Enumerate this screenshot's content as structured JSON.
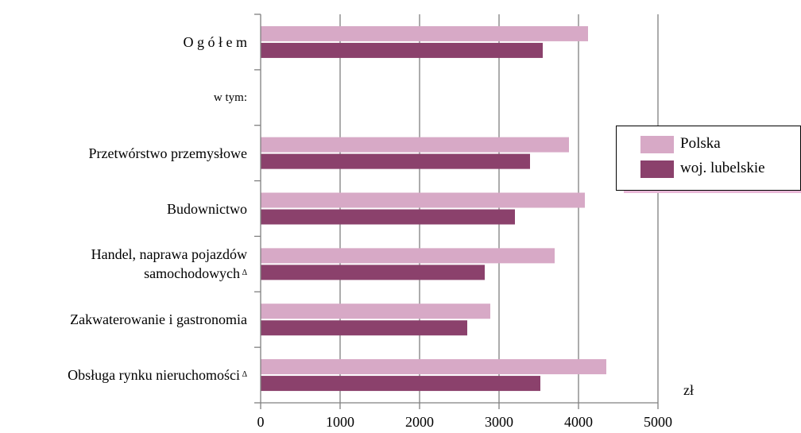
{
  "chart_data": {
    "type": "bar",
    "orientation": "horizontal",
    "categories": [
      "O g ó ł e m",
      "w tym:",
      "Przetwórstwo przemysłowe",
      "Budownictwo",
      "Handel, naprawa pojazdów samochodowych",
      "Zakwaterowanie i gastronomia",
      "Obsługa rynku nieruchomości"
    ],
    "category_lines": [
      [
        "O g ó ł e m"
      ],
      [
        "w tym:"
      ],
      [
        "Przetwórstwo przemysłowe"
      ],
      [
        "Budownictwo"
      ],
      [
        "Handel, naprawa pojazdów",
        "samochodowych"
      ],
      [
        "Zakwaterowanie i gastronomia"
      ],
      [
        "Obsługa rynku nieruchomości"
      ]
    ],
    "category_marks": [
      "",
      "",
      "",
      "",
      "Δ",
      "",
      "Δ"
    ],
    "series": [
      {
        "name": "Polska",
        "color": "#d7a9c6",
        "values": [
          4120,
          null,
          3880,
          4080,
          3700,
          2890,
          4350
        ]
      },
      {
        "name": "woj. lubelskie",
        "color": "#8b416c",
        "values": [
          3550,
          null,
          3390,
          3200,
          2820,
          2600,
          3520
        ]
      }
    ],
    "xlim": [
      0,
      5000
    ],
    "xticks": [
      0,
      1000,
      2000,
      3000,
      4000,
      5000
    ],
    "tick_labels": [
      "0",
      "1000",
      "2000",
      "3000",
      "4000",
      "5000"
    ],
    "unit_label": "zł",
    "grid": true,
    "legend_position": "right"
  }
}
